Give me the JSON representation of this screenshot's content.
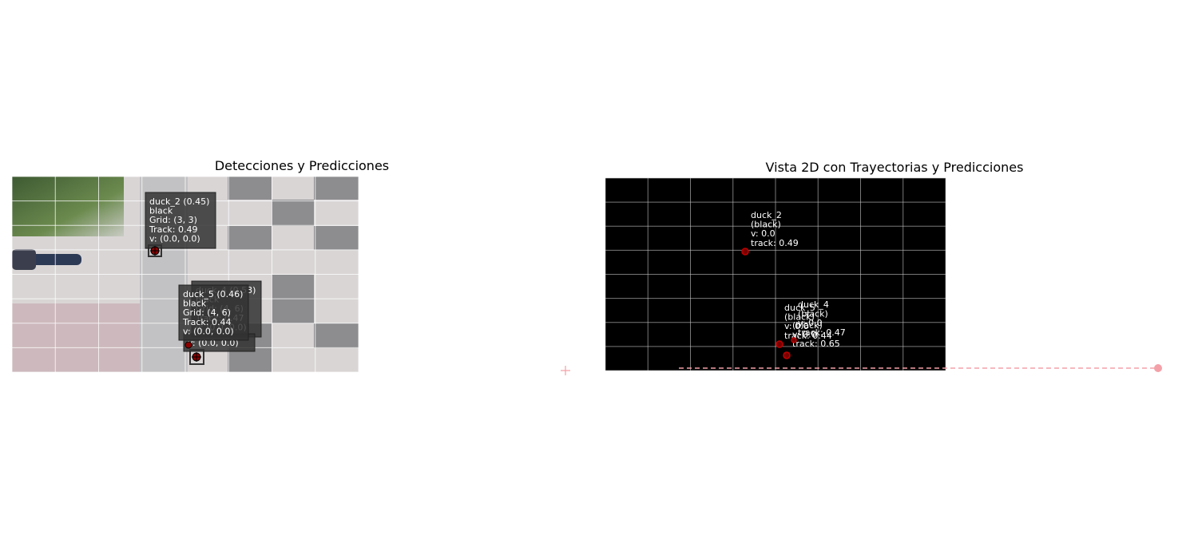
{
  "left_panel": {
    "title": "Detecciones y Predicciones",
    "labels": [
      {
        "lines": [
          "duck_4 (0.53)",
          "black",
          "Grid: (4, 6)",
          "Track: 0.47",
          "v: (0.0, 0.0)"
        ]
      },
      {
        "lines": [
          "duck_2 (0.45)",
          "black",
          "Grid: (3, 3)",
          "Track: 0.49",
          "v: (0.0, 0.0)"
        ]
      },
      {
        "lines": [
          "v: (0.0, 0.0)"
        ]
      },
      {
        "lines": [
          "duck_5 (0.46)",
          "black",
          "Grid: (4, 6)",
          "Track: 0.44",
          "v: (0.0, 0.0)"
        ]
      }
    ]
  },
  "right_panel": {
    "title": "Vista 2D con Trayectorias y Predicciones",
    "labels": [
      {
        "lines": [
          "duck_2",
          "(black)",
          "v: 0.0",
          "track: 0.49"
        ]
      },
      {
        "lines": [
          "duck_5",
          "(black)",
          "v: 0.0",
          "track: 0.44"
        ]
      },
      {
        "lines": [
          "duck_4",
          "(black)",
          "v: 0.0",
          "track: 0.47"
        ]
      },
      {
        "lines": [
          "(black)",
          "v: 0.0",
          "track: 0.65"
        ]
      }
    ]
  }
}
